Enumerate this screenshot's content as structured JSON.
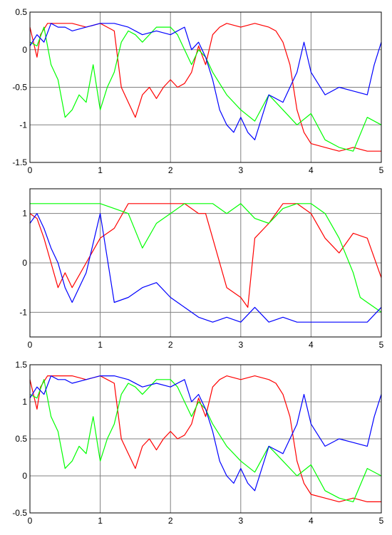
{
  "chart_data": [
    {
      "type": "line",
      "xlim": [
        0,
        5
      ],
      "ylim": [
        -1.5,
        0.5
      ],
      "x_ticks": [
        "0",
        "1",
        "2",
        "3",
        "4",
        "5"
      ],
      "y_ticks": [
        "0.5",
        "0",
        "-0.5",
        "-1",
        "-1.5"
      ],
      "y_tick_values": [
        0.5,
        0,
        -0.5,
        -1,
        -1.5
      ],
      "grid": true,
      "series": [
        {
          "color": "#ff0000",
          "x": [
            0,
            0.1,
            0.15,
            0.25,
            0.4,
            0.6,
            0.8,
            1.0,
            1.1,
            1.2,
            1.3,
            1.4,
            1.5,
            1.6,
            1.7,
            1.8,
            1.9,
            2.0,
            2.1,
            2.2,
            2.3,
            2.4,
            2.5,
            2.6,
            2.7,
            2.8,
            3.0,
            3.2,
            3.4,
            3.5,
            3.6,
            3.7,
            3.8,
            3.9,
            4.0,
            4.2,
            4.4,
            4.6,
            4.8,
            5.0
          ],
          "y": [
            0.3,
            -0.1,
            0.2,
            0.35,
            0.35,
            0.35,
            0.3,
            0.35,
            0.3,
            0.25,
            -0.5,
            -0.7,
            -0.9,
            -0.6,
            -0.5,
            -0.65,
            -0.5,
            -0.4,
            -0.5,
            -0.45,
            -0.3,
            0.05,
            -0.2,
            0.2,
            0.3,
            0.35,
            0.3,
            0.35,
            0.3,
            0.25,
            0.1,
            -0.2,
            -0.8,
            -1.1,
            -1.25,
            -1.3,
            -1.35,
            -1.3,
            -1.35,
            -1.35
          ]
        },
        {
          "color": "#00ff00",
          "x": [
            0,
            0.1,
            0.2,
            0.3,
            0.4,
            0.5,
            0.6,
            0.7,
            0.8,
            0.9,
            1.0,
            1.1,
            1.2,
            1.3,
            1.4,
            1.5,
            1.6,
            1.8,
            2.0,
            2.1,
            2.2,
            2.3,
            2.4,
            2.5,
            2.6,
            2.8,
            3.0,
            3.2,
            3.4,
            3.6,
            3.8,
            4.0,
            4.2,
            4.4,
            4.6,
            4.8,
            5.0
          ],
          "y": [
            0.1,
            0.05,
            0.3,
            -0.2,
            -0.4,
            -0.9,
            -0.8,
            -0.6,
            -0.7,
            -0.2,
            -0.8,
            -0.5,
            -0.3,
            0.1,
            0.25,
            0.2,
            0.1,
            0.3,
            0.3,
            0.2,
            0.0,
            -0.2,
            0.0,
            -0.1,
            -0.3,
            -0.6,
            -0.8,
            -0.95,
            -0.6,
            -0.8,
            -1.0,
            -0.85,
            -1.2,
            -1.3,
            -1.35,
            -0.9,
            -1.0
          ]
        },
        {
          "color": "#0000ff",
          "x": [
            0,
            0.1,
            0.2,
            0.3,
            0.4,
            0.5,
            0.6,
            0.8,
            1.0,
            1.2,
            1.4,
            1.6,
            1.8,
            2.0,
            2.2,
            2.3,
            2.4,
            2.5,
            2.6,
            2.7,
            2.8,
            2.9,
            3.0,
            3.1,
            3.2,
            3.4,
            3.6,
            3.7,
            3.8,
            3.9,
            4.0,
            4.2,
            4.4,
            4.6,
            4.8,
            4.9,
            5.0
          ],
          "y": [
            0.05,
            0.2,
            0.1,
            0.35,
            0.3,
            0.3,
            0.25,
            0.3,
            0.35,
            0.35,
            0.3,
            0.2,
            0.25,
            0.2,
            0.3,
            0.0,
            0.1,
            -0.1,
            -0.4,
            -0.8,
            -1.0,
            -1.1,
            -0.9,
            -1.1,
            -1.2,
            -0.6,
            -0.7,
            -0.5,
            -0.3,
            0.1,
            -0.3,
            -0.6,
            -0.5,
            -0.55,
            -0.6,
            -0.2,
            0.1
          ]
        }
      ]
    },
    {
      "type": "line",
      "xlim": [
        0,
        5
      ],
      "ylim": [
        -1.5,
        1.5
      ],
      "x_ticks": [
        "0",
        "1",
        "2",
        "3",
        "4",
        "5"
      ],
      "y_ticks": [
        "1",
        "0",
        "-1"
      ],
      "y_tick_values": [
        1,
        0,
        -1
      ],
      "grid": true,
      "series": [
        {
          "color": "#ff0000",
          "x": [
            0,
            0.1,
            0.2,
            0.3,
            0.4,
            0.5,
            0.6,
            0.8,
            1.0,
            1.2,
            1.4,
            1.6,
            1.8,
            2.0,
            2.2,
            2.4,
            2.5,
            2.6,
            2.8,
            3.0,
            3.1,
            3.2,
            3.4,
            3.6,
            3.8,
            4.0,
            4.2,
            4.4,
            4.6,
            4.8,
            5.0
          ],
          "y": [
            1.0,
            0.9,
            0.5,
            0.0,
            -0.5,
            -0.2,
            -0.5,
            0.0,
            0.5,
            0.7,
            1.2,
            1.2,
            1.2,
            1.2,
            1.2,
            1.0,
            1.0,
            0.5,
            -0.5,
            -0.7,
            -0.9,
            0.5,
            0.8,
            1.2,
            1.2,
            1.0,
            0.5,
            0.2,
            0.6,
            0.5,
            -0.3
          ]
        },
        {
          "color": "#00ff00",
          "x": [
            0,
            0.2,
            0.4,
            0.6,
            0.8,
            1.0,
            1.2,
            1.4,
            1.6,
            1.8,
            2.0,
            2.2,
            2.4,
            2.6,
            2.8,
            3.0,
            3.2,
            3.4,
            3.6,
            3.8,
            4.0,
            4.2,
            4.4,
            4.6,
            4.7,
            4.8,
            5.0
          ],
          "y": [
            1.2,
            1.2,
            1.2,
            1.2,
            1.2,
            1.2,
            1.1,
            1.0,
            0.3,
            0.8,
            1.0,
            1.2,
            1.2,
            1.2,
            1.0,
            1.2,
            0.9,
            0.8,
            1.1,
            1.2,
            1.2,
            1.0,
            0.5,
            -0.2,
            -0.7,
            -0.8,
            -1.0
          ]
        },
        {
          "color": "#0000ff",
          "x": [
            0,
            0.1,
            0.2,
            0.3,
            0.4,
            0.5,
            0.6,
            0.8,
            1.0,
            1.2,
            1.4,
            1.6,
            1.8,
            2.0,
            2.2,
            2.4,
            2.6,
            2.8,
            3.0,
            3.2,
            3.4,
            3.6,
            3.8,
            4.0,
            4.2,
            4.4,
            4.6,
            4.8,
            5.0
          ],
          "y": [
            0.8,
            1.0,
            0.7,
            0.3,
            0.0,
            -0.5,
            -0.8,
            -0.2,
            1.0,
            -0.8,
            -0.7,
            -0.5,
            -0.4,
            -0.7,
            -0.9,
            -1.1,
            -1.2,
            -1.1,
            -1.2,
            -0.9,
            -1.2,
            -1.1,
            -1.2,
            -1.2,
            -1.2,
            -1.2,
            -1.2,
            -1.2,
            -0.9
          ]
        }
      ]
    },
    {
      "type": "line",
      "xlim": [
        0,
        5
      ],
      "ylim": [
        -0.5,
        1.5
      ],
      "x_ticks": [
        "0",
        "1",
        "2",
        "3",
        "4",
        "5"
      ],
      "y_ticks": [
        "1.5",
        "1",
        "0.5",
        "0",
        "-0.5"
      ],
      "y_tick_values": [
        1.5,
        1,
        0.5,
        0,
        -0.5
      ],
      "grid": true,
      "series": [
        {
          "color": "#ff0000",
          "x": [
            0,
            0.1,
            0.15,
            0.25,
            0.4,
            0.6,
            0.8,
            1.0,
            1.1,
            1.2,
            1.3,
            1.4,
            1.5,
            1.6,
            1.7,
            1.8,
            1.9,
            2.0,
            2.1,
            2.2,
            2.3,
            2.4,
            2.5,
            2.6,
            2.7,
            2.8,
            3.0,
            3.2,
            3.4,
            3.5,
            3.6,
            3.7,
            3.8,
            3.9,
            4.0,
            4.2,
            4.4,
            4.6,
            4.8,
            5.0
          ],
          "y": [
            1.3,
            0.9,
            1.2,
            1.35,
            1.35,
            1.35,
            1.3,
            1.35,
            1.3,
            1.25,
            0.5,
            0.3,
            0.1,
            0.4,
            0.5,
            0.35,
            0.5,
            0.6,
            0.5,
            0.55,
            0.7,
            1.05,
            0.8,
            1.2,
            1.3,
            1.35,
            1.3,
            1.35,
            1.3,
            1.25,
            1.1,
            0.8,
            0.2,
            -0.1,
            -0.25,
            -0.3,
            -0.35,
            -0.3,
            -0.35,
            -0.35
          ]
        },
        {
          "color": "#00ff00",
          "x": [
            0,
            0.1,
            0.2,
            0.3,
            0.4,
            0.5,
            0.6,
            0.7,
            0.8,
            0.9,
            1.0,
            1.1,
            1.2,
            1.3,
            1.4,
            1.5,
            1.6,
            1.8,
            2.0,
            2.1,
            2.2,
            2.3,
            2.4,
            2.5,
            2.6,
            2.8,
            3.0,
            3.2,
            3.4,
            3.6,
            3.8,
            4.0,
            4.2,
            4.4,
            4.6,
            4.8,
            5.0
          ],
          "y": [
            1.1,
            1.05,
            1.3,
            0.8,
            0.6,
            0.1,
            0.2,
            0.4,
            0.3,
            0.8,
            0.2,
            0.5,
            0.7,
            1.1,
            1.25,
            1.2,
            1.1,
            1.3,
            1.3,
            1.2,
            1.0,
            0.8,
            1.0,
            0.9,
            0.7,
            0.4,
            0.2,
            0.05,
            0.4,
            0.2,
            0.0,
            0.15,
            -0.2,
            -0.3,
            -0.35,
            0.1,
            0.0
          ]
        },
        {
          "color": "#0000ff",
          "x": [
            0,
            0.1,
            0.2,
            0.3,
            0.4,
            0.5,
            0.6,
            0.8,
            1.0,
            1.2,
            1.4,
            1.6,
            1.8,
            2.0,
            2.2,
            2.3,
            2.4,
            2.5,
            2.6,
            2.7,
            2.8,
            2.9,
            3.0,
            3.1,
            3.2,
            3.4,
            3.6,
            3.7,
            3.8,
            3.9,
            4.0,
            4.2,
            4.4,
            4.6,
            4.8,
            4.9,
            5.0
          ],
          "y": [
            1.05,
            1.2,
            1.1,
            1.35,
            1.3,
            1.3,
            1.25,
            1.3,
            1.35,
            1.35,
            1.3,
            1.2,
            1.25,
            1.2,
            1.3,
            1.0,
            1.1,
            0.9,
            0.6,
            0.2,
            0.0,
            -0.1,
            0.1,
            -0.1,
            -0.2,
            0.4,
            0.3,
            0.5,
            0.7,
            1.1,
            0.7,
            0.4,
            0.5,
            0.45,
            0.4,
            0.8,
            1.1
          ]
        }
      ]
    }
  ]
}
